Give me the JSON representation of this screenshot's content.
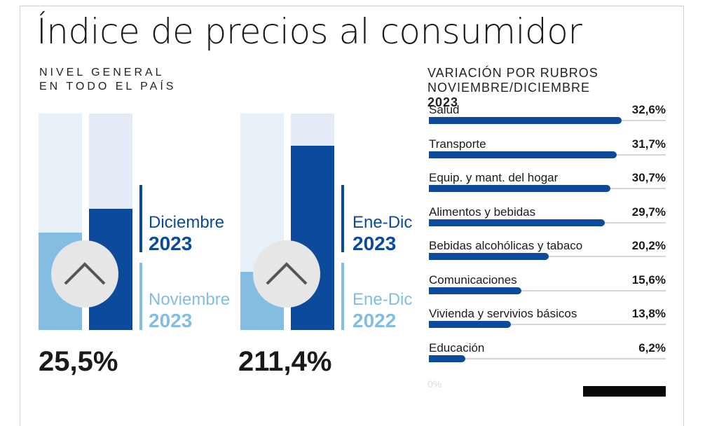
{
  "header": {
    "title": "Índice de precios al consumidor",
    "subtitle_line1": "NIVEL GENERAL",
    "subtitle_line2": "EN TODO EL PAÍS"
  },
  "panel": {
    "title_line1": "VARIACIÓN POR RUBROS",
    "title_line2": "NOVIEMBRE/DICIEMBRE",
    "title_year": "2023",
    "axis_zero_label": "0%"
  },
  "colors": {
    "dark_blue": "#0c4a9b",
    "light_blue": "#83bde1",
    "track_blue": "#e4ebf6",
    "gray_circle": "#e6e6e6"
  },
  "chart_data": [
    {
      "type": "bar",
      "title": "",
      "groups": [
        {
          "total_label": "25,5%",
          "bars": [
            {
              "name": "Noviembre",
              "year": "2023",
              "level": 0.45,
              "color": "#83bde1"
            },
            {
              "name": "Diciembre",
              "year": "2023",
              "level": 0.56,
              "color": "#0c4a9b"
            }
          ]
        },
        {
          "total_label": "211,4%",
          "bars": [
            {
              "name": "Ene-Dic",
              "year": "2022",
              "level": 0.27,
              "color": "#83bde1"
            },
            {
              "name": "Ene-Dic",
              "year": "2023",
              "level": 0.85,
              "color": "#0c4a9b"
            }
          ]
        }
      ]
    },
    {
      "type": "bar",
      "orientation": "horizontal",
      "title": "VARIACIÓN POR RUBROS NOVIEMBRE/DICIEMBRE 2023",
      "categories": [
        "Salud",
        "Transporte",
        "Equip. y mant. del hogar",
        "Alimentos y bebidas",
        "Bebidas alcohólicas y tabaco",
        "Comunicaciones",
        "Vivienda y servivios básicos",
        "Educación"
      ],
      "values": [
        32.6,
        31.7,
        30.7,
        29.7,
        20.2,
        15.6,
        13.8,
        6.2
      ],
      "value_labels": [
        "32,6%",
        "31,7%",
        "30,7%",
        "29,7%",
        "20,2%",
        "15,6%",
        "13,8%",
        "6,2%"
      ],
      "xlim": [
        0,
        40
      ],
      "unit": "%"
    }
  ]
}
